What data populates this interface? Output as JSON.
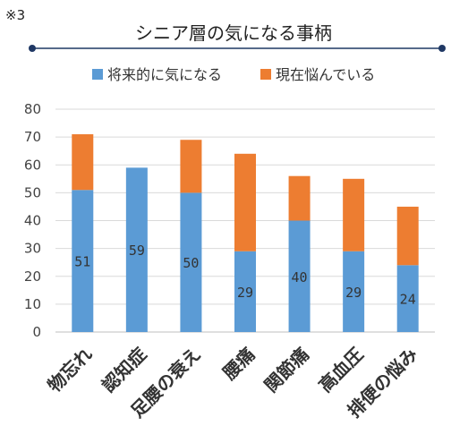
{
  "note": "※3",
  "colors": {
    "title_line": "#1f3864",
    "series_0": "#5b9bd5",
    "series_1": "#ed7d31",
    "grid": "#d9d9d9"
  },
  "chart_data": {
    "type": "bar",
    "stacked": true,
    "title": "シニア層の気になる事柄",
    "categories": [
      "物忘れ",
      "認知症",
      "足腰の衰え",
      "腰痛",
      "関節痛",
      "高血圧",
      "排便の悩み"
    ],
    "series": [
      {
        "name": "将来的に気になる",
        "values": [
          51,
          59,
          50,
          29,
          40,
          29,
          24
        ],
        "data_labels": [
          "51",
          "59",
          "50",
          "29",
          "40",
          "29",
          "24"
        ]
      },
      {
        "name": "現在悩んでいる",
        "values": [
          20,
          0,
          19,
          35,
          16,
          26,
          21
        ]
      }
    ],
    "y_ticks": [
      "0",
      "10",
      "20",
      "30",
      "40",
      "50",
      "60",
      "70",
      "80"
    ],
    "ylim": [
      0,
      80
    ],
    "grid": true,
    "legend": "top"
  }
}
